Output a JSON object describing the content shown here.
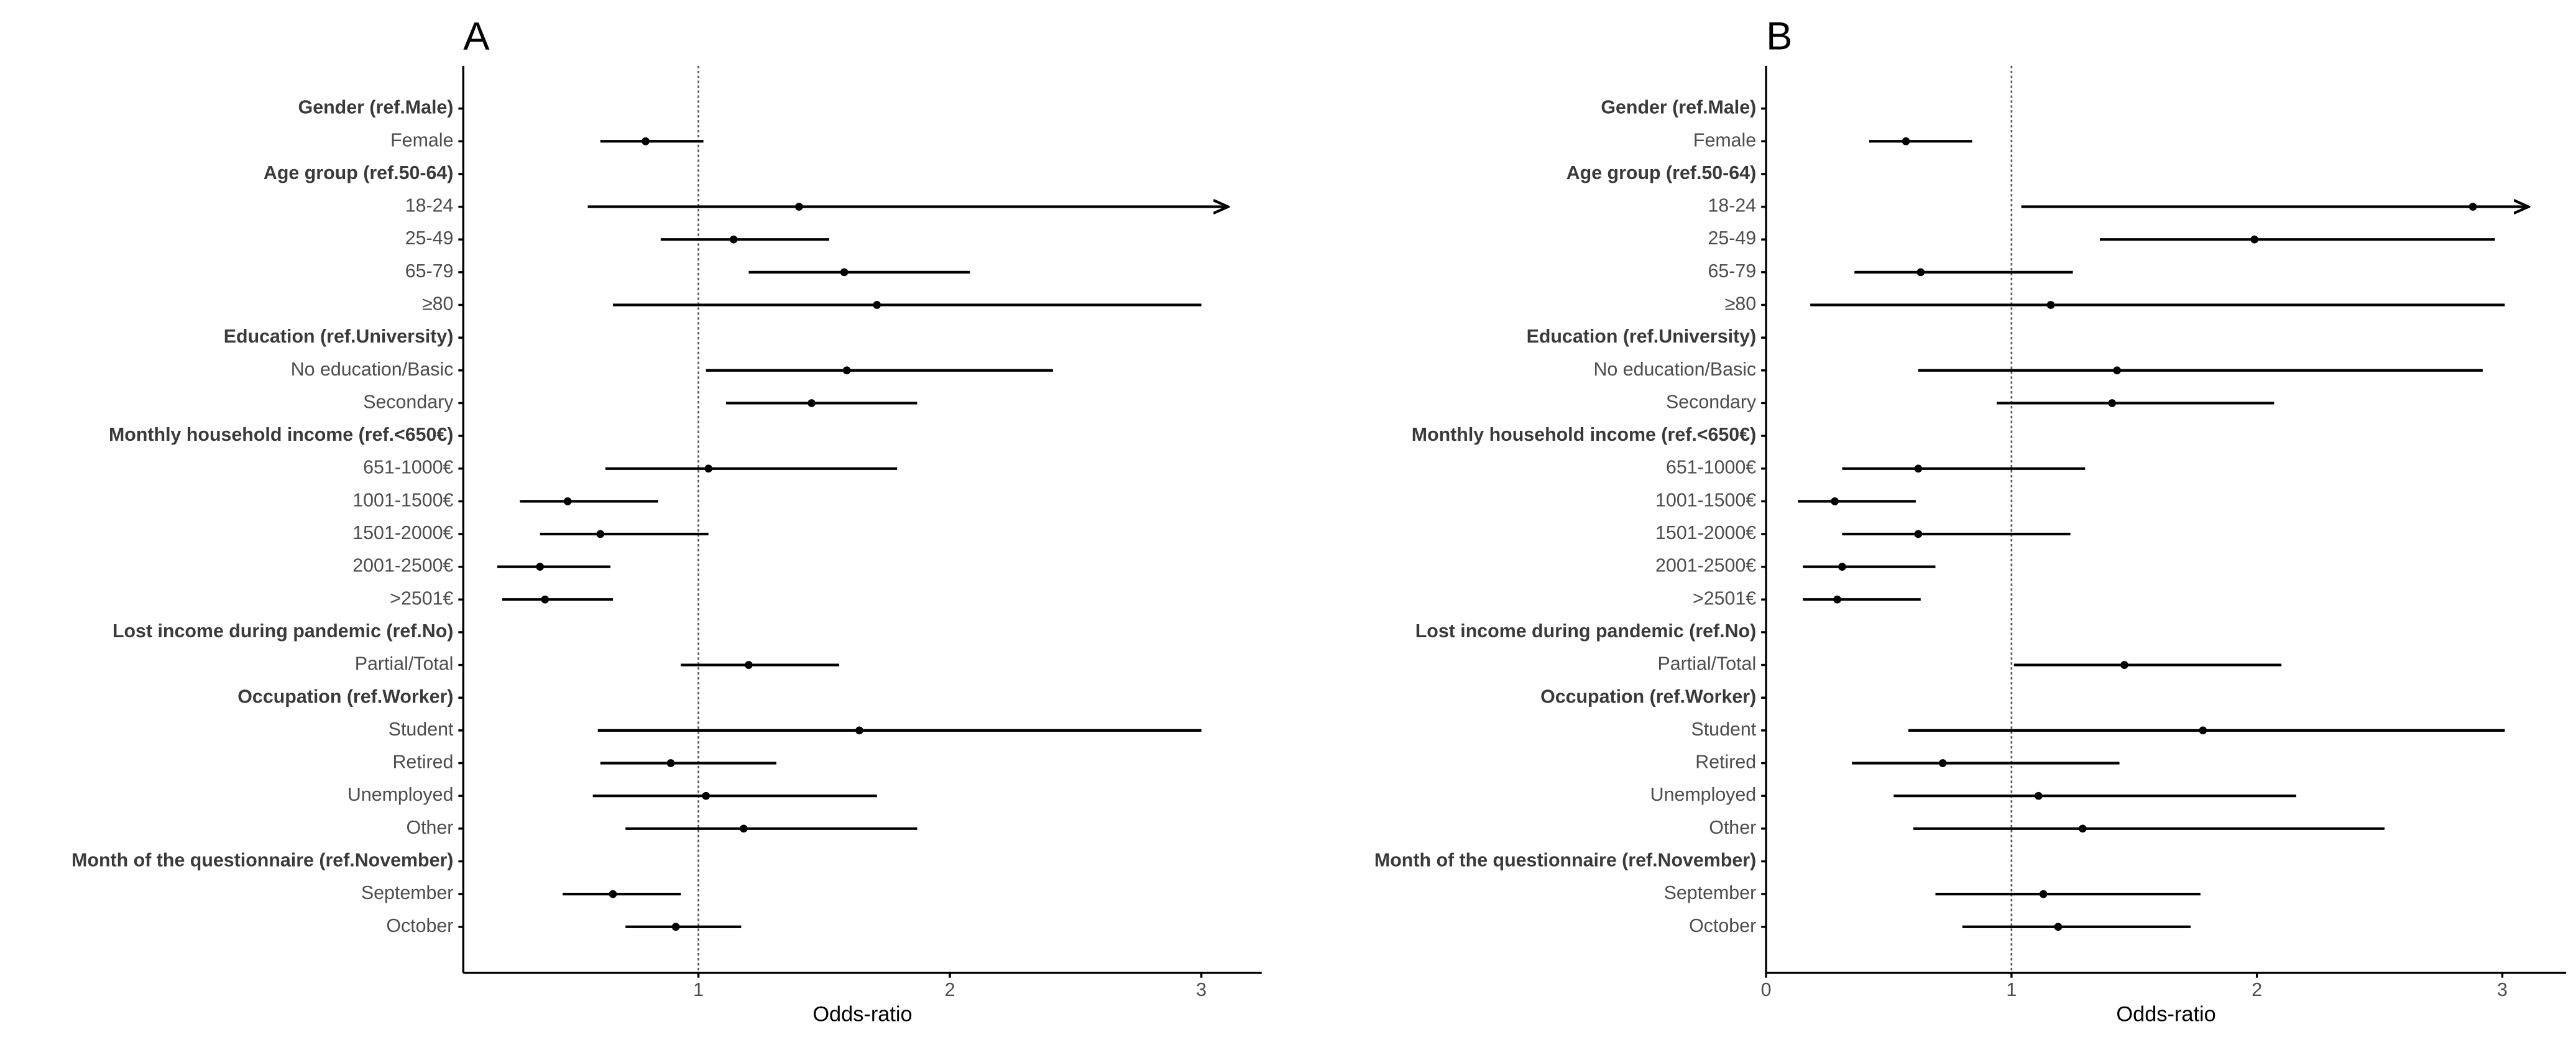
{
  "chart_data": [
    {
      "type": "forest",
      "title": "A",
      "xlabel": "Odds-ratio",
      "categories": [
        "Gender (ref.Male)",
        "Female",
        "Age group (ref.50-64)",
        "18-24",
        "25-49",
        "65-79",
        "≥80",
        "Education (ref.University)",
        "No education/Basic",
        "Secondary",
        "Monthly household income (ref.<650€)",
        "651-1000€",
        "1001-1500€",
        "1501-2000€",
        "2001-2500€",
        ">2501€",
        "Lost income during pandemic (ref.No)",
        "Partial/Total",
        "Occupation (ref.Worker)",
        "Student",
        "Retired",
        "Unemployed",
        "Other",
        "Month of the questionnaire (ref.November)",
        "September",
        "October"
      ],
      "values": [
        null,
        0.79,
        null,
        1.4,
        1.14,
        1.58,
        1.71,
        null,
        1.59,
        1.45,
        null,
        1.04,
        0.48,
        0.61,
        0.37,
        0.39,
        null,
        1.2,
        null,
        1.64,
        0.89,
        1.03,
        1.18,
        null,
        0.66,
        0.91
      ],
      "lower": [
        null,
        0.61,
        null,
        0.56,
        0.85,
        1.2,
        0.66,
        null,
        1.03,
        1.11,
        null,
        0.63,
        0.29,
        0.37,
        0.2,
        0.22,
        null,
        0.93,
        null,
        0.6,
        0.61,
        0.58,
        0.71,
        null,
        0.46,
        0.71
      ],
      "upper": [
        null,
        1.02,
        null,
        3.1,
        1.52,
        2.08,
        3.0,
        null,
        2.41,
        1.87,
        null,
        1.79,
        0.84,
        1.04,
        0.65,
        0.66,
        null,
        1.56,
        null,
        3.0,
        1.31,
        1.71,
        1.87,
        null,
        0.93,
        1.17
      ],
      "arrows": [
        3
      ],
      "reference": 1,
      "color": "#000000",
      "xlim": [
        0.065,
        3.24
      ],
      "xticks": [
        1,
        2,
        3
      ]
    },
    {
      "type": "forest",
      "title": "B",
      "xlabel": "Odds-ratio",
      "categories": [
        "Gender (ref.Male)",
        "Female",
        "Age group (ref.50-64)",
        "18-24",
        "25-49",
        "65-79",
        "≥80",
        "Education (ref.University)",
        "No education/Basic",
        "Secondary",
        "Monthly household income (ref.<650€)",
        "651-1000€",
        "1001-1500€",
        "1501-2000€",
        "2001-2500€",
        ">2501€",
        "Lost income during pandemic (ref.No)",
        "Partial/Total",
        "Occupation (ref.Worker)",
        "Student",
        "Retired",
        "Unemployed",
        "Other",
        "Month of the questionnaire (ref.November)",
        "September",
        "October"
      ],
      "values": [
        null,
        0.57,
        null,
        2.88,
        1.99,
        0.63,
        1.16,
        null,
        1.43,
        1.41,
        null,
        0.62,
        0.28,
        0.62,
        0.31,
        0.29,
        null,
        1.46,
        null,
        1.78,
        0.72,
        1.11,
        1.29,
        null,
        1.13,
        1.19
      ],
      "lower": [
        null,
        0.42,
        null,
        1.04,
        1.36,
        0.36,
        0.18,
        null,
        0.62,
        0.94,
        null,
        0.31,
        0.13,
        0.31,
        0.15,
        0.15,
        null,
        1.01,
        null,
        0.58,
        0.35,
        0.52,
        0.6,
        null,
        0.69,
        0.8
      ],
      "upper": [
        null,
        0.84,
        null,
        3.1,
        2.97,
        1.25,
        3.01,
        null,
        2.92,
        2.07,
        null,
        1.3,
        0.61,
        1.24,
        0.69,
        0.63,
        null,
        2.1,
        null,
        3.01,
        1.44,
        2.16,
        2.52,
        null,
        1.77,
        1.73
      ],
      "arrows": [
        3
      ],
      "reference": 1,
      "color": "#000000",
      "xlim": [
        0,
        3.26
      ],
      "xticks": [
        0,
        1,
        2,
        3
      ]
    }
  ]
}
